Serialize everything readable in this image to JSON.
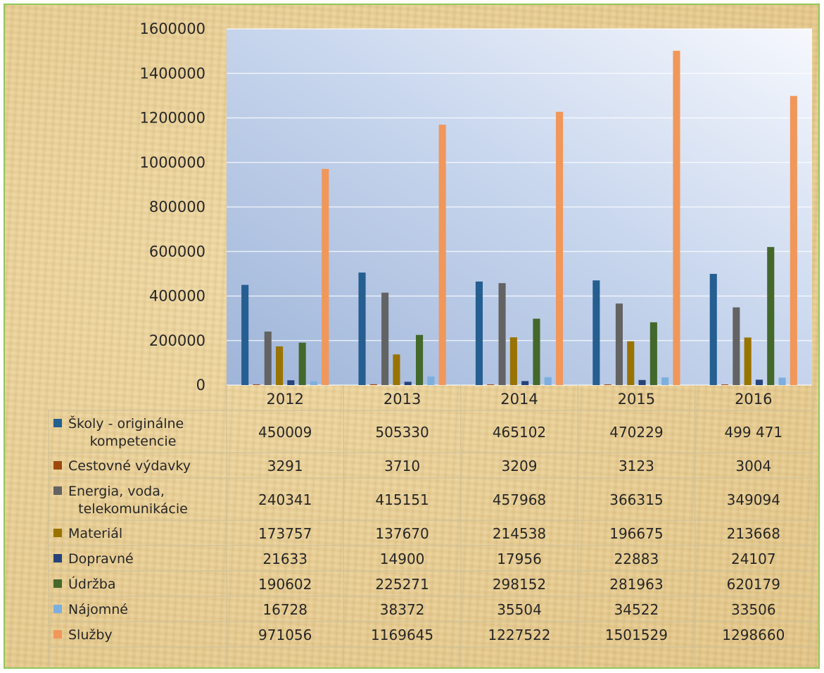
{
  "chart_data": {
    "type": "bar",
    "categories": [
      "2012",
      "2013",
      "2014",
      "2015",
      "2016"
    ],
    "ylim": [
      0,
      1600000
    ],
    "yticks": [
      "0",
      "200000",
      "400000",
      "600000",
      "800000",
      "1000000",
      "1200000",
      "1400000",
      "1600000"
    ],
    "grid": true,
    "legend": "data-table",
    "series": [
      {
        "name": "Školy - originálne kompetencie",
        "label_lines": [
          "Školy - originálne",
          "kompetencie"
        ],
        "color": "#255e91",
        "values": [
          450009,
          505330,
          465102,
          470229,
          499471
        ],
        "labels": [
          "450009",
          "505330",
          "465102",
          "470229",
          "499 471"
        ]
      },
      {
        "name": "Cestovné výdavky",
        "label_lines": [
          "Cestovné výdavky"
        ],
        "color": "#9e480e",
        "values": [
          3291,
          3710,
          3209,
          3123,
          3004
        ],
        "labels": [
          "3291",
          "3710",
          "3209",
          "3123",
          "3004"
        ]
      },
      {
        "name": "Energia, voda, telekomunikácie",
        "label_lines": [
          "Energia, voda,",
          "telekomunikácie"
        ],
        "color": "#636363",
        "values": [
          240341,
          415151,
          457968,
          366315,
          349094
        ],
        "labels": [
          "240341",
          "415151",
          "457968",
          "366315",
          "349094"
        ]
      },
      {
        "name": "Materiál",
        "label_lines": [
          "Materiál"
        ],
        "color": "#997300",
        "values": [
          173757,
          137670,
          214538,
          196675,
          213668
        ],
        "labels": [
          "173757",
          "137670",
          "214538",
          "196675",
          "213668"
        ]
      },
      {
        "name": "Dopravné",
        "label_lines": [
          "Dopravné"
        ],
        "color": "#264478",
        "values": [
          21633,
          14900,
          17956,
          22883,
          24107
        ],
        "labels": [
          "21633",
          "14900",
          "17956",
          "22883",
          "24107"
        ]
      },
      {
        "name": "Údržba",
        "label_lines": [
          "Údržba"
        ],
        "color": "#43682b",
        "values": [
          190602,
          225271,
          298152,
          281963,
          620179
        ],
        "labels": [
          "190602",
          "225271",
          "298152",
          "281963",
          "620179"
        ]
      },
      {
        "name": "Nájomné",
        "label_lines": [
          "Nájomné"
        ],
        "color": "#7cafdd",
        "values": [
          16728,
          38372,
          35504,
          34522,
          33506
        ],
        "labels": [
          "16728",
          "38372",
          "35504",
          "34522",
          "33506"
        ]
      },
      {
        "name": "Služby",
        "label_lines": [
          "Služby"
        ],
        "color": "#f1975a",
        "values": [
          971056,
          1169645,
          1227522,
          1501529,
          1298660
        ],
        "labels": [
          "971056",
          "1169645",
          "1227522",
          "1501529",
          "1298660"
        ]
      }
    ]
  }
}
